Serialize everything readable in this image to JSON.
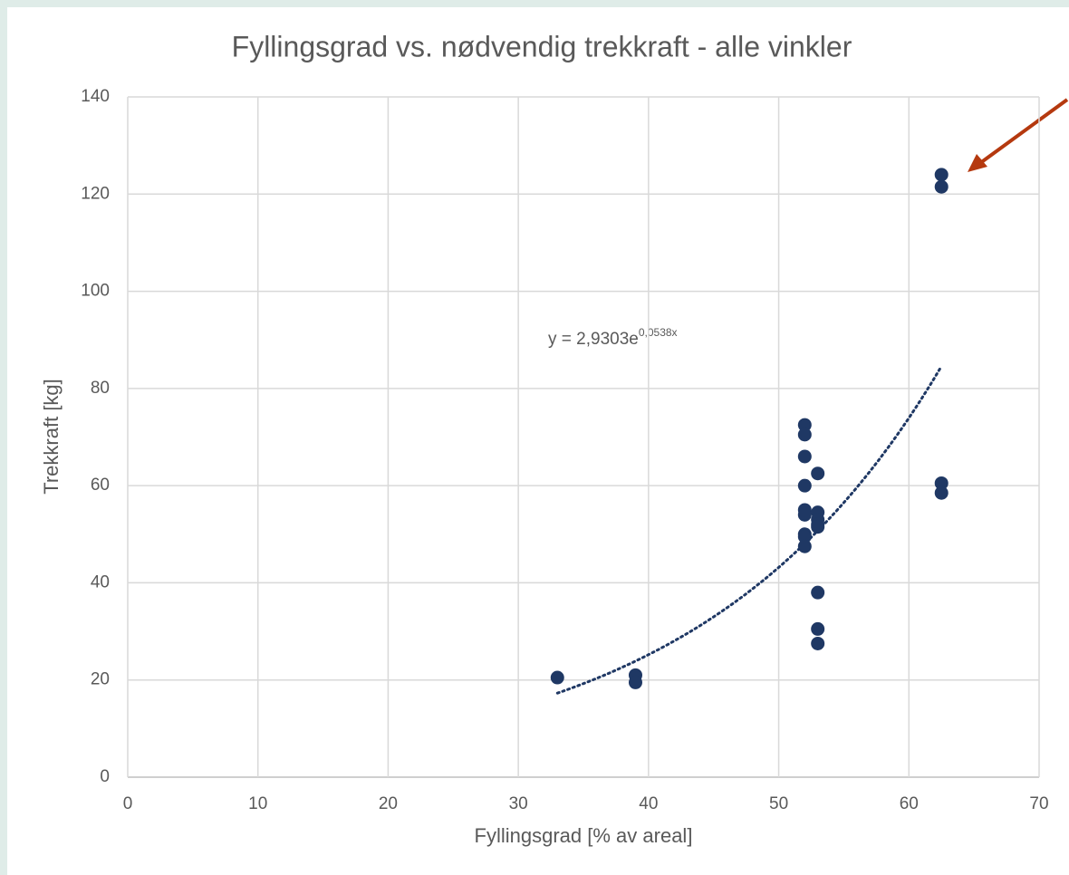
{
  "chart_data": {
    "type": "scatter",
    "title": "Fyllingsgrad vs. nødvendig trekkraft - alle vinkler",
    "x_label": "Fyllingsgrad [% av areal]",
    "y_label": "Trekkraft [kg]",
    "x": [
      33,
      39,
      39,
      52,
      52,
      52,
      52,
      52,
      52,
      52,
      52,
      52,
      53,
      53,
      53,
      53,
      53,
      53,
      53,
      53,
      62.5,
      62.5,
      62.5,
      62.5
    ],
    "values": [
      20.5,
      21,
      19.5,
      72.5,
      70.5,
      66,
      60,
      55,
      54,
      50,
      49.5,
      47.5,
      62.5,
      54.5,
      53,
      52,
      51.5,
      38,
      30.5,
      27.5,
      124,
      121.5,
      60.5,
      58.5
    ],
    "color": "#1f3864",
    "xlim": [
      0,
      70
    ],
    "xticks": [
      0,
      10,
      20,
      30,
      40,
      50,
      60,
      70
    ],
    "ylim": [
      0,
      140
    ],
    "yticks": [
      0,
      20,
      40,
      60,
      80,
      100,
      120,
      140
    ],
    "grid": true,
    "trendline": {
      "label": "y = 2,9303e",
      "exponent_label": "0,0538x",
      "a": 2.9303,
      "b": 0.0538,
      "x_range": [
        33,
        62.5
      ]
    }
  }
}
